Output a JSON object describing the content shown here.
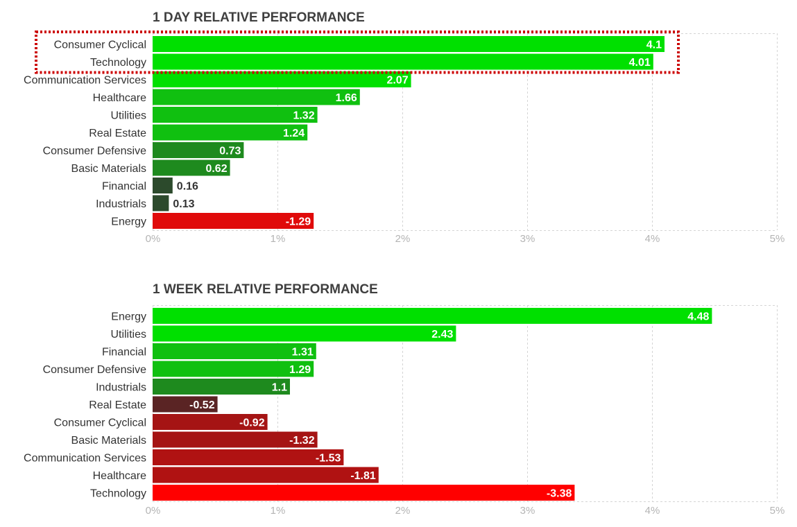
{
  "colors": {
    "green_strong": "#00e000",
    "green_mid": "#10c010",
    "green_dim": "#1e8a1e",
    "green_dark": "#2c4a2c",
    "red_strong": "#ff0000",
    "red_mid": "#e00a0a",
    "red_dim": "#a51414",
    "red_dark": "#5a2424",
    "highlight": "#cc0000",
    "grid": "#d4d4d4"
  },
  "chart_data": [
    {
      "type": "bar",
      "orientation": "horizontal",
      "title": "1 DAY RELATIVE PERFORMANCE",
      "categories": [
        "Consumer Cyclical",
        "Technology",
        "Communication Services",
        "Healthcare",
        "Utilities",
        "Real Estate",
        "Consumer Defensive",
        "Basic Materials",
        "Financial",
        "Industrials",
        "Energy"
      ],
      "values": [
        4.1,
        4.01,
        2.07,
        1.66,
        1.32,
        1.24,
        0.73,
        0.62,
        0.16,
        0.13,
        -1.29
      ],
      "value_labels": [
        "4.1",
        "4.01",
        "2.07",
        "1.66",
        "1.32",
        "1.24",
        "0.73",
        "0.62",
        "0.16",
        "0.13",
        "-1.29"
      ],
      "xlim": [
        0,
        5
      ],
      "xticks": [
        "0%",
        "1%",
        "2%",
        "3%",
        "4%",
        "5%"
      ],
      "grid": true,
      "bar_length": "absolute value",
      "highlighted_categories": [
        "Consumer Cyclical",
        "Technology"
      ]
    },
    {
      "type": "bar",
      "orientation": "horizontal",
      "title": "1 WEEK RELATIVE PERFORMANCE",
      "categories": [
        "Energy",
        "Utilities",
        "Financial",
        "Consumer Defensive",
        "Industrials",
        "Real Estate",
        "Consumer Cyclical",
        "Basic Materials",
        "Communication Services",
        "Healthcare",
        "Technology"
      ],
      "values": [
        4.48,
        2.43,
        1.31,
        1.29,
        1.1,
        -0.52,
        -0.92,
        -1.32,
        -1.53,
        -1.81,
        -3.38
      ],
      "value_labels": [
        "4.48",
        "2.43",
        "1.31",
        "1.29",
        "1.1",
        "-0.52",
        "-0.92",
        "-1.32",
        "-1.53",
        "-1.81",
        "-3.38"
      ],
      "xlim": [
        0,
        5
      ],
      "xticks": [
        "0%",
        "1%",
        "2%",
        "3%",
        "4%",
        "5%"
      ],
      "grid": true,
      "bar_length": "absolute value",
      "highlighted_categories": []
    }
  ]
}
